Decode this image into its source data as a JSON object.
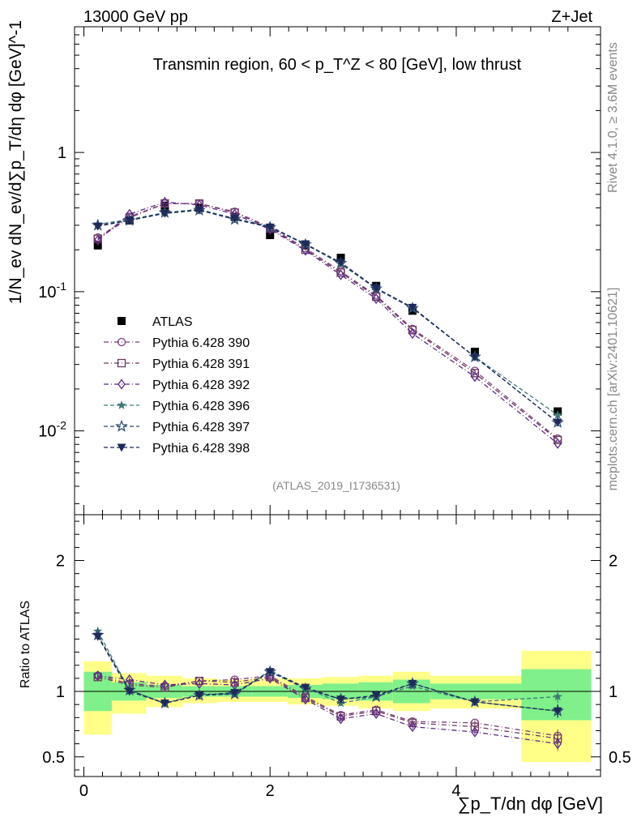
{
  "header": {
    "energy_label": "13000 GeV pp",
    "process_label": "Z+Jet",
    "plot_title": "Transmin region, 60 < p_T^Z < 80 [GeV], low thrust",
    "side_rivet": "Rivet 4.1.0, ≥ 3.6M events",
    "side_mcplots": "mcplots.cern.ch [arXiv:2401.10621]",
    "analysis_id": "(ATLAS_2019_I1736531)"
  },
  "colors": {
    "atlas": "#000000",
    "p390": "#7a3f7a",
    "p391": "#6e3a5e",
    "p392": "#5b2a86",
    "p396": "#3f7a78",
    "p397": "#2e4a6e",
    "p398": "#1d2a5a",
    "band_green": "#7ff08a",
    "band_yellow": "#ffff88"
  },
  "chart_data": [
    {
      "type": "scatter",
      "title": "Transmin region, 60 < p_T^Z < 80 [GeV], low thrust",
      "ylabel": "1/N_ev dN_ev/d∑p_T/dη dφ [GeV]^-1",
      "yscale": "log",
      "ylim": [
        0.0025,
        8
      ],
      "xlim": [
        -0.1,
        5.55
      ],
      "y_tick_labels": [
        "1",
        "10^-1",
        "10^-2"
      ],
      "legend": [
        {
          "key": "atlas",
          "label": "ATLAS",
          "marker": "square"
        },
        {
          "key": "p390",
          "label": "Pythia 6.428 390",
          "marker": "circle"
        },
        {
          "key": "p391",
          "label": "Pythia 6.428 391",
          "marker": "open-square"
        },
        {
          "key": "p392",
          "label": "Pythia 6.428 392",
          "marker": "diamond"
        },
        {
          "key": "p396",
          "label": "Pythia 6.428 396",
          "marker": "star"
        },
        {
          "key": "p397",
          "label": "Pythia 6.428 397",
          "marker": "open-star"
        },
        {
          "key": "p398",
          "label": "Pythia 6.428 398",
          "marker": "triangle-down"
        }
      ],
      "x": [
        0.15,
        0.49,
        0.87,
        1.24,
        1.62,
        2.0,
        2.38,
        2.76,
        3.14,
        3.53,
        4.2,
        5.09
      ],
      "series": [
        {
          "name": "ATLAS",
          "key": "atlas",
          "values": [
            0.215,
            0.325,
            0.415,
            0.4,
            0.345,
            0.255,
            0.215,
            0.175,
            0.11,
            0.073,
            0.037,
            0.0138
          ]
        },
        {
          "name": "Pythia 6.428 390",
          "key": "p390",
          "values": [
            0.245,
            0.345,
            0.43,
            0.43,
            0.375,
            0.29,
            0.205,
            0.14,
            0.094,
            0.054,
            0.027,
            0.0088
          ]
        },
        {
          "name": "Pythia 6.428 391",
          "key": "p391",
          "values": [
            0.24,
            0.34,
            0.43,
            0.43,
            0.37,
            0.285,
            0.2,
            0.137,
            0.092,
            0.053,
            0.026,
            0.0086
          ]
        },
        {
          "name": "Pythia 6.428 392",
          "key": "p392",
          "values": [
            0.235,
            0.36,
            0.44,
            0.42,
            0.36,
            0.28,
            0.198,
            0.132,
            0.089,
            0.05,
            0.0245,
            0.0081
          ]
        },
        {
          "name": "Pythia 6.428 396",
          "key": "p396",
          "values": [
            0.305,
            0.33,
            0.37,
            0.39,
            0.335,
            0.295,
            0.22,
            0.158,
            0.105,
            0.076,
            0.034,
            0.013
          ]
        },
        {
          "name": "Pythia 6.428 397",
          "key": "p397",
          "values": [
            0.3,
            0.325,
            0.37,
            0.385,
            0.33,
            0.29,
            0.218,
            0.16,
            0.105,
            0.076,
            0.034,
            0.0115
          ]
        },
        {
          "name": "Pythia 6.428 398",
          "key": "p398",
          "values": [
            0.295,
            0.325,
            0.365,
            0.385,
            0.335,
            0.29,
            0.22,
            0.162,
            0.106,
            0.077,
            0.034,
            0.0115
          ]
        }
      ]
    },
    {
      "type": "scatter",
      "ylabel": "Ratio to ATLAS",
      "xlabel": "∑p_T/dη dφ [GeV]",
      "ylim": [
        0.35,
        2.35
      ],
      "xlim": [
        -0.1,
        5.55
      ],
      "x_ticks": [
        0,
        2,
        4
      ],
      "x_tick_labels": [
        "0",
        "2",
        "4"
      ],
      "y_ticks": [
        0.5,
        1,
        2
      ],
      "y_tick_labels": [
        "0.5",
        "1",
        "2"
      ],
      "bins": [
        [
          0.0,
          0.3
        ],
        [
          0.3,
          0.67
        ],
        [
          0.67,
          1.06
        ],
        [
          1.06,
          1.43
        ],
        [
          1.43,
          1.8
        ],
        [
          1.8,
          2.19
        ],
        [
          2.19,
          2.56
        ],
        [
          2.56,
          2.95
        ],
        [
          2.95,
          3.32
        ],
        [
          3.32,
          3.72
        ],
        [
          3.72,
          4.7
        ],
        [
          4.7,
          5.45
        ]
      ],
      "band_green": [
        [
          0.85,
          1.15
        ],
        [
          0.93,
          1.07
        ],
        [
          0.95,
          1.05
        ],
        [
          0.96,
          1.04
        ],
        [
          0.96,
          1.04
        ],
        [
          0.96,
          1.04
        ],
        [
          0.95,
          1.05
        ],
        [
          0.94,
          1.06
        ],
        [
          0.93,
          1.07
        ],
        [
          0.91,
          1.09
        ],
        [
          0.94,
          1.06
        ],
        [
          0.78,
          1.17
        ]
      ],
      "band_yellow": [
        [
          0.67,
          1.23
        ],
        [
          0.83,
          1.14
        ],
        [
          0.88,
          1.12
        ],
        [
          0.91,
          1.1
        ],
        [
          0.92,
          1.09
        ],
        [
          0.92,
          1.1
        ],
        [
          0.9,
          1.1
        ],
        [
          0.89,
          1.11
        ],
        [
          0.87,
          1.12
        ],
        [
          0.85,
          1.15
        ],
        [
          0.87,
          1.12
        ],
        [
          0.46,
          1.31
        ]
      ],
      "x": [
        0.15,
        0.49,
        0.87,
        1.24,
        1.62,
        2.0,
        2.38,
        2.76,
        3.14,
        3.53,
        4.2,
        5.09
      ],
      "series": [
        {
          "name": "Pythia 6.428 390",
          "key": "p390",
          "values": [
            1.12,
            1.06,
            1.04,
            1.08,
            1.09,
            1.12,
            0.96,
            0.82,
            0.86,
            0.77,
            0.76,
            0.66
          ]
        },
        {
          "name": "Pythia 6.428 391",
          "key": "p391",
          "values": [
            1.11,
            1.05,
            1.03,
            1.08,
            1.07,
            1.11,
            0.95,
            0.81,
            0.85,
            0.76,
            0.73,
            0.64
          ]
        },
        {
          "name": "Pythia 6.428 392",
          "key": "p392",
          "values": [
            1.12,
            1.09,
            1.05,
            1.06,
            1.05,
            1.1,
            0.94,
            0.79,
            0.83,
            0.73,
            0.69,
            0.6
          ]
        },
        {
          "name": "Pythia 6.428 396",
          "key": "p396",
          "values": [
            1.46,
            1.01,
            0.91,
            0.98,
            0.98,
            1.16,
            1.03,
            0.91,
            0.96,
            1.04,
            0.92,
            0.96
          ]
        },
        {
          "name": "Pythia 6.428 397",
          "key": "p397",
          "values": [
            1.43,
            1.01,
            0.91,
            0.97,
            0.98,
            1.15,
            1.02,
            0.94,
            0.96,
            1.06,
            0.92,
            0.85
          ]
        },
        {
          "name": "Pythia 6.428 398",
          "key": "p398",
          "values": [
            1.42,
            1.0,
            0.91,
            0.97,
            0.99,
            1.15,
            1.03,
            0.94,
            0.97,
            1.06,
            0.92,
            0.85
          ]
        }
      ]
    }
  ]
}
